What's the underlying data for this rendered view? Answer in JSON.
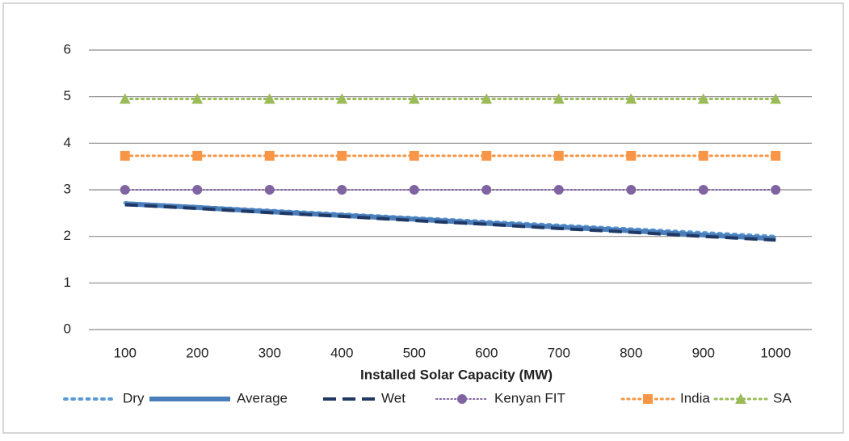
{
  "chart_data": {
    "type": "line",
    "x_label": "Installed Solar Capacity (MW)",
    "categories": [
      "100",
      "200",
      "300",
      "400",
      "500",
      "600",
      "700",
      "800",
      "900",
      "1000"
    ],
    "series": [
      {
        "name": "Dry",
        "color": "#5b9bd5",
        "dash": "dotted",
        "width": 4,
        "marker": "none",
        "values": [
          2.72,
          2.64,
          2.56,
          2.48,
          2.4,
          2.32,
          2.24,
          2.16,
          2.08,
          2.0
        ]
      },
      {
        "name": "Average",
        "color": "#4a7ebb",
        "dash": "solid",
        "width": 6,
        "marker": "none",
        "values": [
          2.7,
          2.62,
          2.53,
          2.45,
          2.37,
          2.28,
          2.2,
          2.12,
          2.03,
          1.95
        ]
      },
      {
        "name": "Wet",
        "color": "#1f3864",
        "dash": "dashed",
        "width": 4,
        "marker": "none",
        "values": [
          2.68,
          2.6,
          2.51,
          2.43,
          2.34,
          2.26,
          2.17,
          2.09,
          2.0,
          1.92
        ]
      },
      {
        "name": "Kenyan FIT",
        "color": "#8064a2",
        "dash": "dotted",
        "width": 2,
        "marker": "circle",
        "values": [
          3,
          3,
          3,
          3,
          3,
          3,
          3,
          3,
          3,
          3
        ]
      },
      {
        "name": "India",
        "color": "#f79646",
        "dash": "dotted",
        "width": 3,
        "marker": "square",
        "values": [
          3.73,
          3.73,
          3.73,
          3.73,
          3.73,
          3.73,
          3.73,
          3.73,
          3.73,
          3.73
        ]
      },
      {
        "name": "SA",
        "color": "#9bbb59",
        "dash": "dotted",
        "width": 3,
        "marker": "triangle",
        "values": [
          4.95,
          4.95,
          4.95,
          4.95,
          4.95,
          4.95,
          4.95,
          4.95,
          4.95,
          4.95
        ]
      }
    ],
    "ylim": [
      0,
      6
    ],
    "yticks": [
      0,
      1,
      2,
      3,
      4,
      5,
      6
    ],
    "grid": true,
    "legend": "bottom"
  }
}
